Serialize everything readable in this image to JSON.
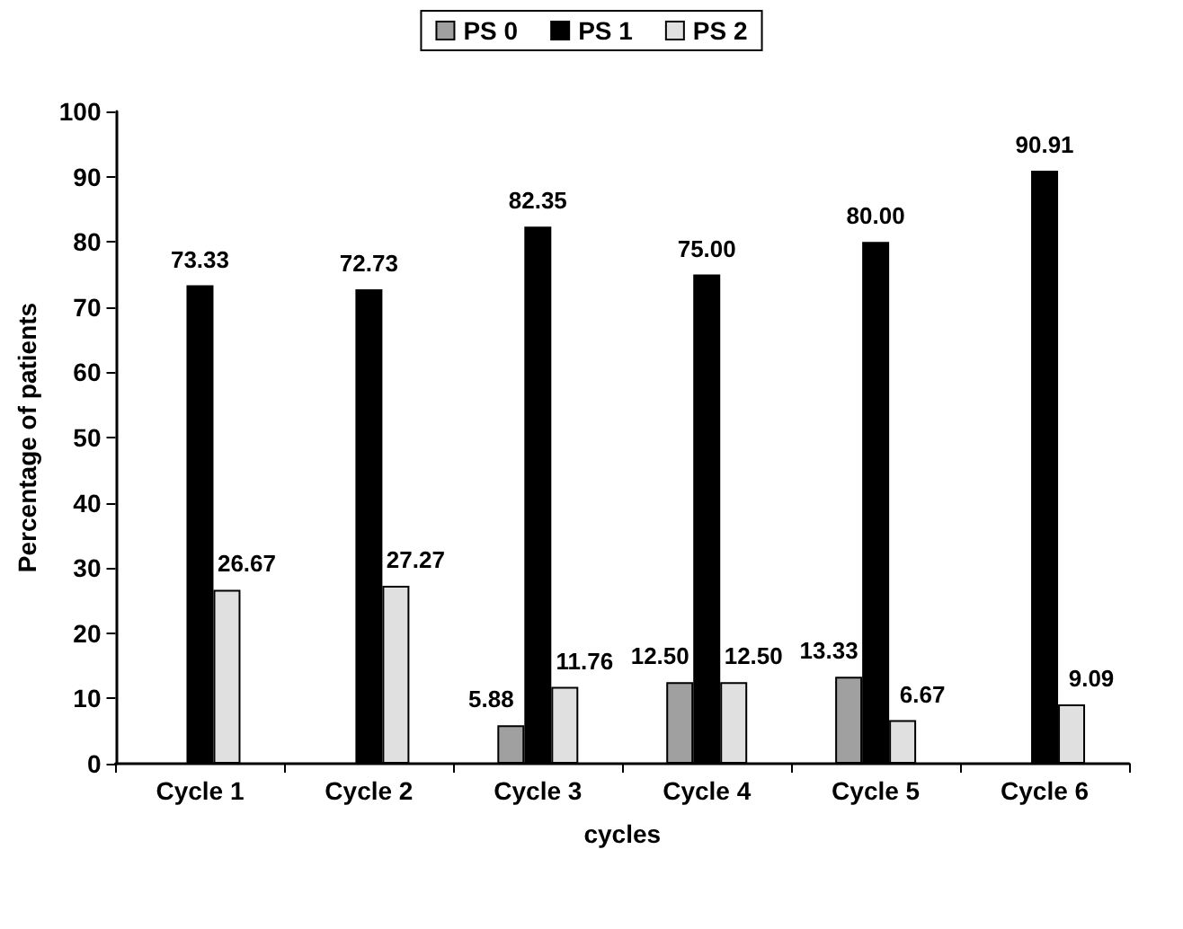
{
  "chart_data": {
    "type": "bar",
    "xlabel": "cycles",
    "ylabel": "Percentage of patients",
    "categories": [
      "Cycle 1",
      "Cycle 2",
      "Cycle 3",
      "Cycle 4",
      "Cycle 5",
      "Cycle 6"
    ],
    "series": [
      {
        "name": "PS 0",
        "color": "#a0a0a0",
        "values": [
          null,
          null,
          5.88,
          12.5,
          13.33,
          null
        ],
        "value_labels": [
          null,
          null,
          "5.88",
          "12.50",
          "13.33",
          null
        ]
      },
      {
        "name": "PS 1",
        "color": "#000000",
        "values": [
          73.33,
          72.73,
          82.35,
          75,
          80,
          90.91
        ],
        "value_labels": [
          "73.33",
          "72.73",
          "82.35",
          "75.00",
          "80.00",
          "90.91"
        ]
      },
      {
        "name": "PS 2",
        "color": "#e0e0e0",
        "values": [
          26.67,
          27.27,
          11.76,
          12.5,
          6.67,
          9.09
        ],
        "value_labels": [
          "26.67",
          "27.27",
          "11.76",
          "12.50",
          "6.67",
          "9.09"
        ]
      }
    ],
    "ylim": [
      0,
      100
    ],
    "yticks": [
      0,
      10,
      20,
      30,
      40,
      50,
      60,
      70,
      80,
      90,
      100
    ],
    "grid": false,
    "legend": "top"
  }
}
